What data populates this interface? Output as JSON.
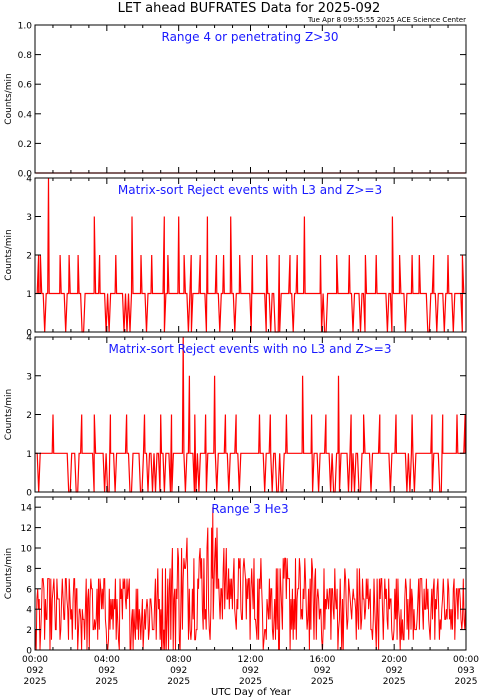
{
  "header": {
    "title": "LET ahead BUFRATES Data for 2025-092",
    "timestamp": "Tue Apr  8 09:55:55 2025 ACE Science Center"
  },
  "colors": {
    "data": "#ff0000",
    "axes": "#000000",
    "panel_title": "#1a1aff",
    "background": "#ffffff"
  },
  "x_axis": {
    "label": "UTC Day of Year",
    "ticks": [
      {
        "hours": 0,
        "lines": [
          "00:00",
          "092",
          "2025"
        ]
      },
      {
        "hours": 4,
        "lines": [
          "04:00",
          "092",
          "2025"
        ]
      },
      {
        "hours": 8,
        "lines": [
          "08:00",
          "092",
          "2025"
        ]
      },
      {
        "hours": 12,
        "lines": [
          "12:00",
          "092",
          "2025"
        ]
      },
      {
        "hours": 16,
        "lines": [
          "16:00",
          "092",
          "2025"
        ]
      },
      {
        "hours": 20,
        "lines": [
          "20:00",
          "092",
          "2025"
        ]
      },
      {
        "hours": 24,
        "lines": [
          "00:00",
          "093",
          "2025"
        ]
      }
    ],
    "range_hours": [
      0,
      24
    ]
  },
  "chart_data": [
    {
      "type": "line",
      "title": "Range 4 or  penetrating Z>30",
      "ylabel": "Counts/min",
      "ylim": [
        0,
        1.0
      ],
      "yticks": [
        "0.0",
        "0.2",
        "0.4",
        "0.6",
        "0.8",
        "1.0"
      ],
      "x_hours_range": [
        0,
        24
      ],
      "bins": 288,
      "dominant": 0,
      "spikes": []
    },
    {
      "type": "line",
      "title": "Matrix-sort Reject events with L3 and Z>=3",
      "ylabel": "Counts/min",
      "ylim": [
        0,
        4
      ],
      "yticks": [
        "0",
        "1",
        "2",
        "3",
        "4"
      ],
      "x_hours_range": [
        0,
        24
      ],
      "bins": 288,
      "dominant": 1,
      "spikes": [
        [
          0.75,
          4
        ],
        [
          0.2,
          2
        ],
        [
          0.3,
          2
        ],
        [
          1.4,
          2
        ],
        [
          1.9,
          2
        ],
        [
          2.4,
          2
        ],
        [
          3.3,
          3
        ],
        [
          3.6,
          2
        ],
        [
          4.5,
          2
        ],
        [
          5.4,
          3
        ],
        [
          5.9,
          2
        ],
        [
          6.5,
          2
        ],
        [
          7.2,
          3
        ],
        [
          7.4,
          2
        ],
        [
          8.0,
          3
        ],
        [
          8.3,
          2
        ],
        [
          8.7,
          2
        ],
        [
          9.2,
          2
        ],
        [
          9.6,
          3
        ],
        [
          10.1,
          2
        ],
        [
          10.5,
          2
        ],
        [
          10.9,
          3
        ],
        [
          11.4,
          2
        ],
        [
          12.1,
          2
        ],
        [
          12.9,
          2
        ],
        [
          13.6,
          2
        ],
        [
          14.2,
          2
        ],
        [
          14.6,
          2
        ],
        [
          15.0,
          3
        ],
        [
          15.9,
          2
        ],
        [
          16.8,
          2
        ],
        [
          17.5,
          2
        ],
        [
          18.4,
          2
        ],
        [
          19.0,
          2
        ],
        [
          19.9,
          3
        ],
        [
          20.3,
          2
        ],
        [
          21.0,
          2
        ],
        [
          21.4,
          2
        ],
        [
          22.2,
          2
        ],
        [
          23.0,
          2
        ],
        [
          23.8,
          2
        ]
      ]
    },
    {
      "type": "line",
      "title": "Matrix-sort Reject events with no L3 and Z>=3",
      "ylabel": "Counts/min",
      "ylim": [
        0,
        4
      ],
      "yticks": [
        "0",
        "1",
        "2",
        "3",
        "4"
      ],
      "x_hours_range": [
        0,
        24
      ],
      "bins": 288,
      "dominant": 1,
      "spikes": [
        [
          1.0,
          2
        ],
        [
          2.6,
          2
        ],
        [
          3.3,
          2
        ],
        [
          4.2,
          2
        ],
        [
          5.1,
          2
        ],
        [
          6.1,
          2
        ],
        [
          7.0,
          2
        ],
        [
          7.6,
          2
        ],
        [
          8.25,
          4
        ],
        [
          8.6,
          3
        ],
        [
          8.9,
          2
        ],
        [
          9.5,
          2
        ],
        [
          10.0,
          3
        ],
        [
          10.6,
          2
        ],
        [
          11.2,
          2
        ],
        [
          12.5,
          2
        ],
        [
          13.1,
          2
        ],
        [
          14.0,
          2
        ],
        [
          14.9,
          3
        ],
        [
          15.4,
          2
        ],
        [
          16.2,
          2
        ],
        [
          16.9,
          3
        ],
        [
          17.6,
          2
        ],
        [
          18.3,
          2
        ],
        [
          19.2,
          2
        ],
        [
          20.1,
          2
        ],
        [
          21.0,
          2
        ],
        [
          22.1,
          2
        ],
        [
          22.7,
          2
        ],
        [
          23.5,
          2
        ],
        [
          23.95,
          2
        ]
      ]
    },
    {
      "type": "line",
      "title": "Range 3 He3",
      "ylabel": "Counts/min",
      "ylim": [
        0,
        15
      ],
      "yticks": [
        "0",
        "2",
        "4",
        "6",
        "8",
        "10",
        "12",
        "14"
      ],
      "x_hours_range": [
        0,
        24
      ],
      "baseline": [
        [
          0,
          3.5
        ],
        [
          2,
          3.6
        ],
        [
          4,
          3.6
        ],
        [
          6,
          3.7
        ],
        [
          7,
          4.2
        ],
        [
          8,
          5.5
        ],
        [
          9,
          6.5
        ],
        [
          10,
          7.0
        ],
        [
          11,
          6.0
        ],
        [
          12,
          5.0
        ],
        [
          13,
          4.7
        ],
        [
          14,
          4.6
        ],
        [
          16,
          4.3
        ],
        [
          18,
          4.2
        ],
        [
          20,
          4.0
        ],
        [
          22,
          4.0
        ],
        [
          24,
          4.0
        ]
      ],
      "ymax": [
        [
          0,
          8
        ],
        [
          2,
          8
        ],
        [
          4,
          8
        ],
        [
          6,
          8
        ],
        [
          7,
          9
        ],
        [
          8,
          13
        ],
        [
          9,
          12
        ],
        [
          9.9,
          14
        ],
        [
          10.5,
          11
        ],
        [
          11,
          10
        ],
        [
          12,
          10
        ],
        [
          14,
          10
        ],
        [
          16,
          9
        ],
        [
          18,
          9
        ],
        [
          20,
          8
        ],
        [
          22,
          8
        ],
        [
          24,
          7
        ]
      ]
    }
  ]
}
